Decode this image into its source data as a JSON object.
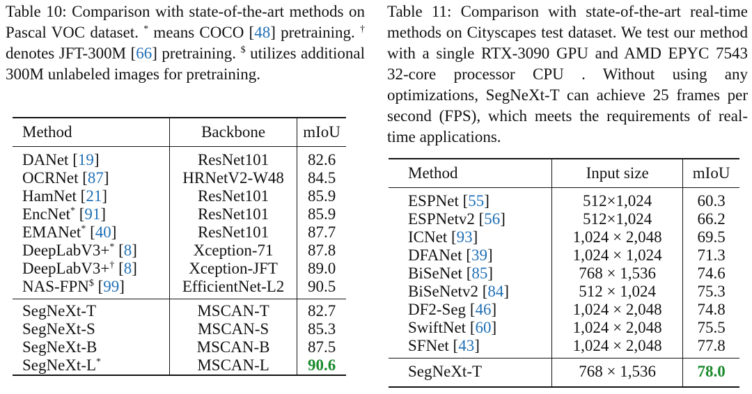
{
  "table10": {
    "caption": {
      "p1": "Table 10: Comparison with state-of-the-art methods on Pascal VOC dataset. ",
      "star": "*",
      "p2": " means COCO [",
      "ref1": "48",
      "p3": "] pretraining. ",
      "dagger": "†",
      "p4": " denotes JFT-300M [",
      "ref2": "66",
      "p5": "] pretraining. ",
      "dollar": "$",
      "p6": " utilizes additional 300M unlabeled images for pretraining."
    },
    "headers": [
      "Method",
      "Backbone",
      "mIoU"
    ],
    "group1": [
      {
        "method": "DANet",
        "sup": "",
        "ref": "19",
        "backbone": "ResNet101",
        "miou": "82.6"
      },
      {
        "method": "OCRNet",
        "sup": "",
        "ref": "87",
        "backbone": "HRNetV2-W48",
        "miou": "84.5"
      },
      {
        "method": "HamNet",
        "sup": "",
        "ref": "21",
        "backbone": "ResNet101",
        "miou": "85.9"
      },
      {
        "method": "EncNet",
        "sup": "*",
        "ref": "91",
        "backbone": "ResNet101",
        "miou": "85.9"
      },
      {
        "method": "EMANet",
        "sup": "*",
        "ref": "40",
        "backbone": "ResNet101",
        "miou": "87.7"
      },
      {
        "method": "DeepLabV3+",
        "sup": "*",
        "ref": "8",
        "backbone": "Xception-71",
        "miou": "87.8"
      },
      {
        "method": "DeepLabV3+",
        "sup": "†",
        "ref": "8",
        "backbone": "Xception-JFT",
        "miou": "89.0"
      },
      {
        "method": "NAS-FPN",
        "sup": "$",
        "ref": "99",
        "backbone": "EfficientNet-L2",
        "miou": "90.5"
      }
    ],
    "group2": [
      {
        "method": "SegNeXt-T",
        "sup": "",
        "backbone": "MSCAN-T",
        "miou": "82.7",
        "best": false
      },
      {
        "method": "SegNeXt-S",
        "sup": "",
        "backbone": "MSCAN-S",
        "miou": "85.3",
        "best": false
      },
      {
        "method": "SegNeXt-B",
        "sup": "",
        "backbone": "MSCAN-B",
        "miou": "87.5",
        "best": false
      },
      {
        "method": "SegNeXt-L",
        "sup": "*",
        "backbone": "MSCAN-L",
        "miou": "90.6",
        "best": true
      }
    ]
  },
  "table11": {
    "caption": "Table 11:  Comparison with state-of-the-art real-time methods on Cityscapes test dataset.  We test our method with a single RTX-3090 GPU and AMD EPYC 7543 32-core processor CPU . Without using any optimizations, SegNeXt-T can achieve 25 frames per second (FPS), which meets the requirements of real-time applications.",
    "headers": [
      "Method",
      "Input size",
      "mIoU"
    ],
    "group1": [
      {
        "method": "ESPNet",
        "ref": "55",
        "size": "512×1,024",
        "miou": "60.3"
      },
      {
        "method": "ESPNetv2",
        "ref": "56",
        "size": "512×1,024",
        "miou": "66.2"
      },
      {
        "method": "ICNet",
        "ref": "93",
        "size": "1,024 × 2,048",
        "miou": "69.5"
      },
      {
        "method": "DFANet",
        "ref": "39",
        "size": "1,024 × 1,024",
        "miou": "71.3"
      },
      {
        "method": "BiSeNet",
        "ref": "85",
        "size": "768 × 1,536",
        "miou": "74.6"
      },
      {
        "method": "BiSeNetv2",
        "ref": "84",
        "size": "512 × 1,024",
        "miou": "75.3"
      },
      {
        "method": "DF2-Seg",
        "ref": "46",
        "size": "1,024 × 2,048",
        "miou": "74.8"
      },
      {
        "method": "SwiftNet",
        "ref": "60",
        "size": "1,024 × 2,048",
        "miou": "75.5"
      },
      {
        "method": "SFNet",
        "ref": "43",
        "size": "1,024 × 2,048",
        "miou": "77.8"
      }
    ],
    "group2": [
      {
        "method": "SegNeXt-T",
        "size": "768 × 1,536",
        "miou": "78.0",
        "best": true
      }
    ]
  },
  "colors": {
    "link": "#1f6fb5",
    "best": "#1a8a2c"
  }
}
